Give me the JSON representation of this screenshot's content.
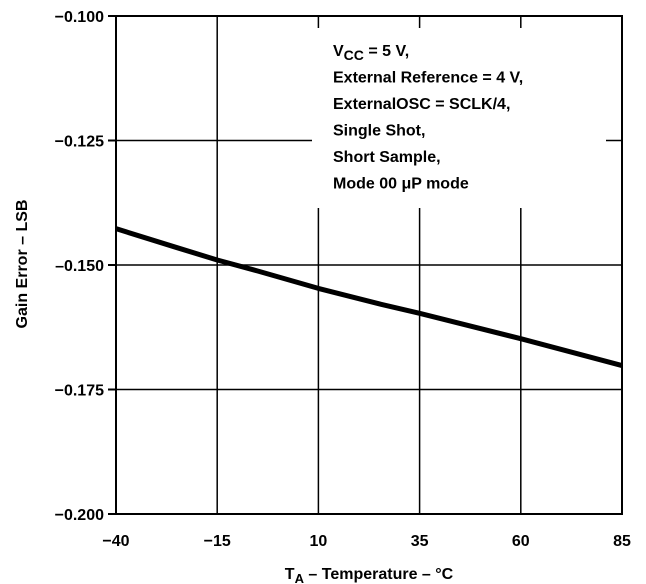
{
  "chart_data": {
    "type": "line",
    "title": "",
    "xlabel": {
      "main": "T",
      "sub": "A",
      "rest": " – Temperature – °C"
    },
    "ylabel": "Gain Error – LSB",
    "xlim": [
      -40,
      85
    ],
    "ylim": [
      -0.2,
      -0.1
    ],
    "xticks": [
      -40,
      -15,
      10,
      35,
      60,
      85
    ],
    "xtick_labels": [
      "−40",
      "−15",
      "10",
      "35",
      "60",
      "85"
    ],
    "yticks": [
      -0.1,
      -0.125,
      -0.15,
      -0.175,
      -0.2
    ],
    "ytick_labels": [
      "−0.100",
      "−0.125",
      "–0.150",
      "−0.175",
      "−0.200"
    ],
    "grid": true,
    "series": [
      {
        "x": [
          -40,
          -25,
          -15,
          -5,
          10,
          25,
          35,
          60,
          85
        ],
        "y": [
          -0.1427,
          -0.1465,
          -0.149,
          -0.1512,
          -0.1547,
          -0.1578,
          -0.1597,
          -0.1648,
          -0.1702
        ]
      }
    ],
    "annotation": [
      {
        "main": "V",
        "sub": "CC",
        "rest": " = 5 V,"
      },
      {
        "main": "External Reference = 4 V,"
      },
      {
        "main": "ExternalOSC = SCLK/4,"
      },
      {
        "main": "Single Shot,"
      },
      {
        "main": "Short Sample,"
      },
      {
        "main": "Mode 00 μP mode"
      }
    ]
  }
}
